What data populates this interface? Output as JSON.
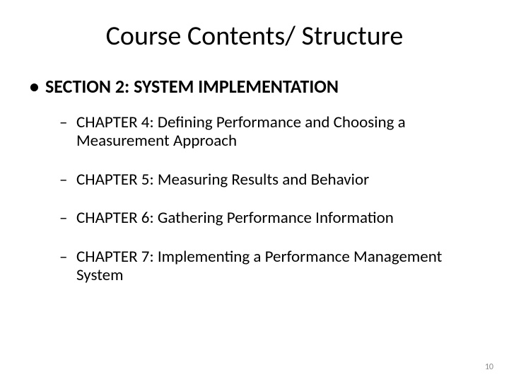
{
  "title": "Course Contents/ Structure",
  "section": {
    "label": "SECTION 2: SYSTEM IMPLEMENTATION",
    "chapters": [
      "CHAPTER 4: Defining Performance and Choosing a Measurement Approach",
      "CHAPTER 5: Measuring Results and Behavior",
      "CHAPTER 6: Gathering Performance Information",
      "CHAPTER 7: Implementing a Performance Management System"
    ]
  },
  "page_number": "10",
  "styling": {
    "background_color": "#ffffff",
    "text_color": "#000000",
    "page_num_color": "#8a8a8a",
    "title_fontsize": 38,
    "level1_fontsize": 26,
    "level2_fontsize": 23,
    "font_family": "Calibri"
  }
}
